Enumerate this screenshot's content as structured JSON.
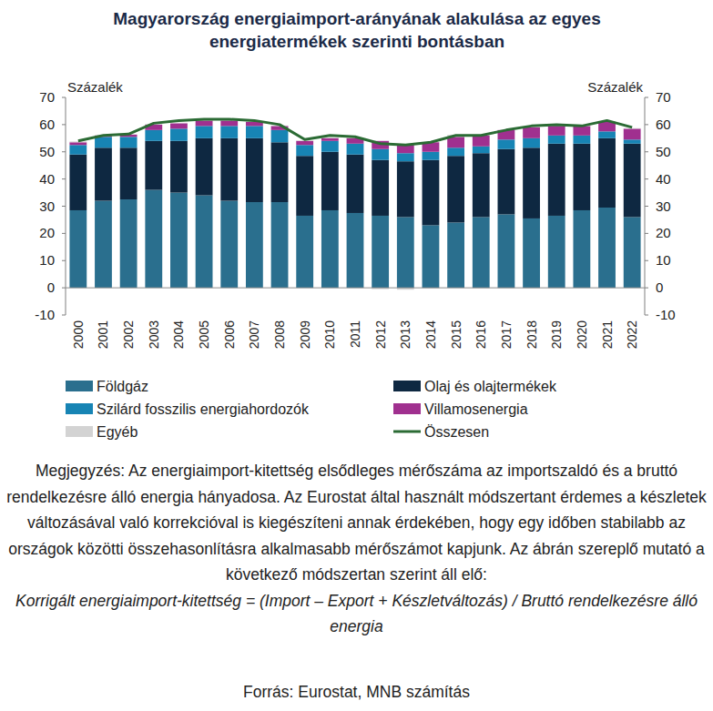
{
  "chart_data": {
    "type": "bar",
    "title": "Magyarország energiaimport-arányának alakulása az egyes energiatermékek szerinti bontásban",
    "y_label": "Százalék",
    "y2_label": "Százalék",
    "stacked": true,
    "grid": false,
    "legend": "bottom",
    "categories": [
      "2000",
      "2001",
      "2002",
      "2003",
      "2004",
      "2005",
      "2006",
      "2007",
      "2008",
      "2009",
      "2010",
      "2011",
      "2012",
      "2013",
      "2014",
      "2015",
      "2016",
      "2017",
      "2018",
      "2019",
      "2020",
      "2021",
      "2022"
    ],
    "ylim": [
      -10,
      70
    ],
    "yticks": [
      -10,
      0,
      10,
      20,
      30,
      40,
      50,
      60,
      70
    ],
    "y2lim": [
      -10,
      70
    ],
    "y2ticks": [
      -10,
      0,
      10,
      20,
      30,
      40,
      50,
      60,
      70
    ],
    "series": [
      {
        "name": "Földgáz",
        "color": "#2a6f8e",
        "values": [
          28.5,
          32,
          32.5,
          36,
          35,
          34,
          32,
          31.5,
          31.5,
          26.5,
          28.5,
          27.5,
          26.5,
          26,
          23,
          24,
          26,
          27,
          25.5,
          26.5,
          28.5,
          29.5,
          26
        ]
      },
      {
        "name": "Olaj és olajtermékek",
        "color": "#0e2841",
        "values": [
          20.5,
          19.5,
          19,
          18,
          19,
          21,
          23,
          23.5,
          22,
          22,
          21.5,
          21.5,
          20.5,
          20.5,
          24,
          24.5,
          23.5,
          24,
          26,
          26.5,
          24.5,
          25.5,
          27
        ]
      },
      {
        "name": "Szilárd fosszilis energiahordozók",
        "color": "#1784b4",
        "values": [
          3.5,
          4,
          4,
          4,
          4.5,
          4.5,
          4.5,
          4.5,
          4.5,
          4,
          4,
          4,
          4,
          3,
          3,
          3,
          2.5,
          3.5,
          3.5,
          3,
          3,
          2.5,
          1.5
        ]
      },
      {
        "name": "Villamosenergia",
        "color": "#a0308f",
        "values": [
          1,
          0.5,
          0.8,
          2,
          2,
          2,
          2,
          1.5,
          1.5,
          1.5,
          1,
          2,
          3,
          3,
          3.5,
          4,
          4,
          3.5,
          4,
          3.5,
          3.5,
          3.5,
          4
        ]
      },
      {
        "name": "Egyéb",
        "color": "#d3d3d3",
        "values": [
          0.3,
          0.2,
          0.2,
          0.2,
          0.2,
          0.2,
          0.2,
          0.2,
          0.2,
          0.2,
          0.2,
          0.2,
          -0.5,
          -0.7,
          -0.3,
          0.7,
          -0.3,
          -0.3,
          -0.3,
          -0.3,
          0.2,
          0.3,
          0.2
        ]
      },
      {
        "name": "Összesen",
        "color": "#2b6b34",
        "type": "line",
        "axis": "y2",
        "values": [
          54,
          56,
          56.5,
          60.5,
          61.5,
          62,
          62,
          61.5,
          60,
          54.5,
          56,
          55.5,
          53,
          52.5,
          53.5,
          56,
          56,
          58,
          59.5,
          60,
          59.5,
          61.5,
          59
        ]
      }
    ],
    "note": "Megjegyzés: Az energiaimport-kitettség elsődleges mérőszáma az importszaldó és a bruttó rendelkezésre álló energia hányadosa. Az Eurostat által használt módszertant érdemes a készletek változásával való korrekcióval is kiegészíteni annak érdekében, hogy egy időben stabilabb az országok közötti összehasonlításra alkalmasabb mérőszámot kapjunk. Az ábrán szereplő mutató a következő módszertan szerint áll elő:",
    "formula": "Korrigált energiaimport-kitettség = (Import – Export + Készletváltozás) / Bruttó rendelkezésre álló energia",
    "source": "Forrás: Eurostat, MNB számítás"
  }
}
